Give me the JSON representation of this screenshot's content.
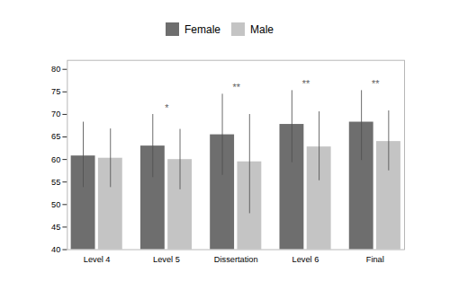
{
  "chart_data": {
    "type": "bar",
    "categories": [
      "Level 4",
      "Level 5",
      "Dissertation",
      "Level 6",
      "Final"
    ],
    "series": [
      {
        "name": "Female",
        "color": "#6e6e6e",
        "values": [
          60.8,
          63.0,
          65.5,
          67.8,
          68.3
        ],
        "error_low": [
          7.0,
          7.0,
          9.0,
          8.5,
          8.5
        ],
        "error_high": [
          7.5,
          7.0,
          9.0,
          7.5,
          7.0
        ]
      },
      {
        "name": "Male",
        "color": "#c4c4c4",
        "values": [
          60.3,
          60.0,
          59.5,
          62.8,
          64.0
        ],
        "error_low": [
          6.5,
          6.7,
          11.5,
          7.5,
          6.5
        ],
        "error_high": [
          6.5,
          6.7,
          10.5,
          7.8,
          6.8
        ]
      }
    ],
    "error_color": "#505050",
    "significance": [
      null,
      "*",
      "**",
      "**",
      "**"
    ],
    "significance_color": "#666666",
    "ylim": [
      40,
      82
    ],
    "yticks": [
      40,
      45,
      50,
      55,
      60,
      65,
      70,
      75,
      80
    ],
    "grid": false,
    "legend": "top"
  }
}
